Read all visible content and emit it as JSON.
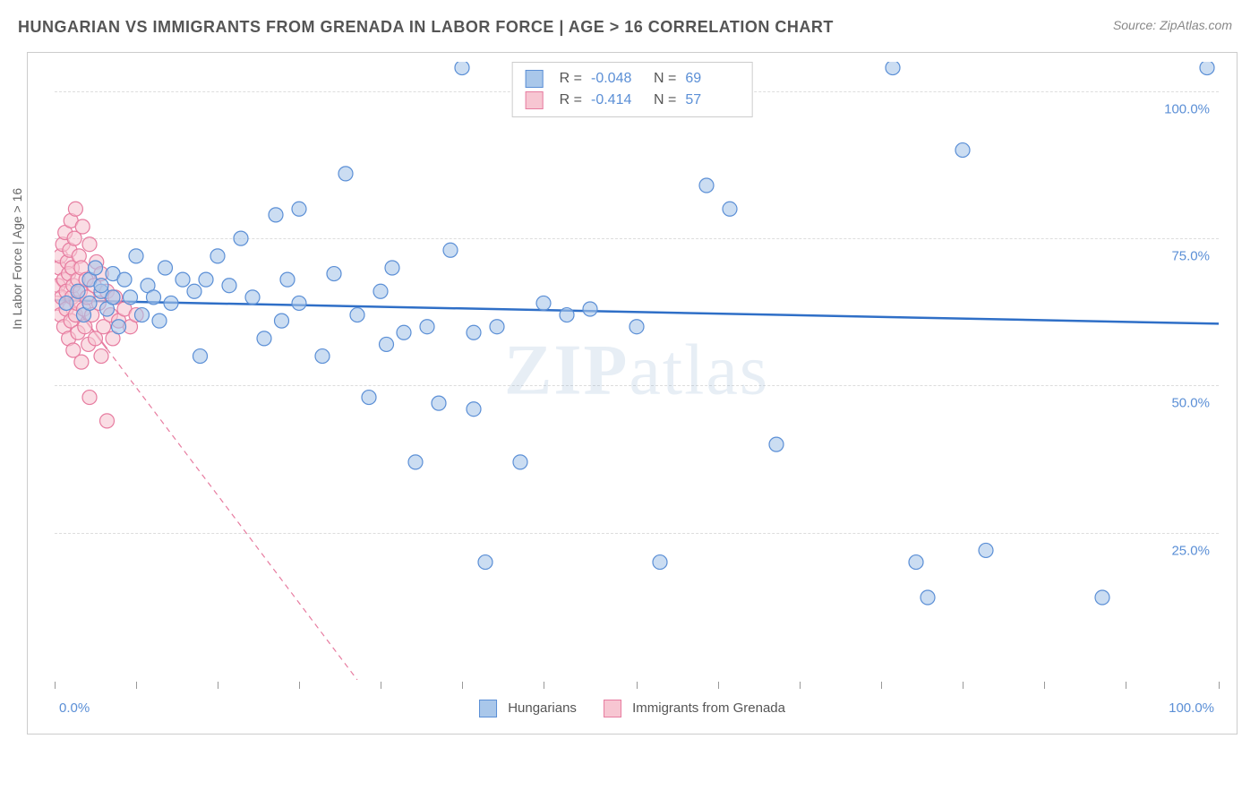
{
  "title": "HUNGARIAN VS IMMIGRANTS FROM GRENADA IN LABOR FORCE | AGE > 16 CORRELATION CHART",
  "source": "Source: ZipAtlas.com",
  "watermark_a": "ZIP",
  "watermark_b": "atlas",
  "y_axis_title": "In Labor Force | Age > 16",
  "x_min_label": "0.0%",
  "x_max_label": "100.0%",
  "chart": {
    "type": "scatter",
    "xlim": [
      0,
      100
    ],
    "ylim": [
      0,
      105
    ],
    "y_ticks": [
      25,
      50,
      75,
      100
    ],
    "y_tick_labels": [
      "25.0%",
      "50.0%",
      "75.0%",
      "100.0%"
    ],
    "x_minor_ticks": [
      0,
      7,
      14,
      21,
      28,
      35,
      42,
      50,
      57,
      64,
      71,
      78,
      85,
      92,
      100
    ],
    "background_color": "#ffffff",
    "grid_color": "#dddddd",
    "marker_radius": 8,
    "marker_stroke_width": 1.2,
    "marker_fill_opacity": 0.25,
    "series": [
      {
        "name": "Hungarians",
        "color_fill": "#a9c7ea",
        "color_stroke": "#5b8fd6",
        "R": "-0.048",
        "N": "69",
        "regression": {
          "x1": 0,
          "y1": 64.5,
          "x2": 100,
          "y2": 60.5,
          "width": 2.5,
          "dash": "",
          "color": "#2f6fc7"
        },
        "points": [
          [
            1,
            64
          ],
          [
            2,
            66
          ],
          [
            2.5,
            62
          ],
          [
            3,
            68
          ],
          [
            3,
            64
          ],
          [
            3.5,
            70
          ],
          [
            4,
            66
          ],
          [
            4,
            67
          ],
          [
            4.5,
            63
          ],
          [
            5,
            69
          ],
          [
            5,
            65
          ],
          [
            5.5,
            60
          ],
          [
            6,
            68
          ],
          [
            6.5,
            65
          ],
          [
            7,
            72
          ],
          [
            7.5,
            62
          ],
          [
            8,
            67
          ],
          [
            8.5,
            65
          ],
          [
            9,
            61
          ],
          [
            9.5,
            70
          ],
          [
            10,
            64
          ],
          [
            11,
            68
          ],
          [
            12,
            66
          ],
          [
            12.5,
            55
          ],
          [
            13,
            68
          ],
          [
            14,
            72
          ],
          [
            15,
            67
          ],
          [
            16,
            75
          ],
          [
            17,
            65
          ],
          [
            18,
            58
          ],
          [
            19,
            79
          ],
          [
            19.5,
            61
          ],
          [
            20,
            68
          ],
          [
            21,
            80
          ],
          [
            21,
            64
          ],
          [
            23,
            55
          ],
          [
            24,
            69
          ],
          [
            25,
            86
          ],
          [
            26,
            62
          ],
          [
            27,
            48
          ],
          [
            28,
            66
          ],
          [
            28.5,
            57
          ],
          [
            29,
            70
          ],
          [
            30,
            59
          ],
          [
            31,
            37
          ],
          [
            32,
            60
          ],
          [
            33,
            47
          ],
          [
            34,
            73
          ],
          [
            35,
            104
          ],
          [
            36,
            46
          ],
          [
            36,
            59
          ],
          [
            37,
            20
          ],
          [
            38,
            60
          ],
          [
            40,
            37
          ],
          [
            42,
            64
          ],
          [
            44,
            62
          ],
          [
            46,
            63
          ],
          [
            50,
            60
          ],
          [
            52,
            20
          ],
          [
            56,
            84
          ],
          [
            58,
            80
          ],
          [
            62,
            40
          ],
          [
            72,
            104
          ],
          [
            74,
            20
          ],
          [
            75,
            14
          ],
          [
            78,
            90
          ],
          [
            80,
            22
          ],
          [
            90,
            14
          ],
          [
            99,
            104
          ]
        ]
      },
      {
        "name": "Immigrants from Grenada",
        "color_fill": "#f7c6d2",
        "color_stroke": "#e77ca0",
        "R": "-0.414",
        "N": "57",
        "regression": {
          "x1": 0,
          "y1": 68,
          "x2": 26,
          "y2": 0,
          "width": 1.2,
          "dash": "6,5",
          "color": "#e77ca0",
          "solid_until_x": 4.5
        },
        "points": [
          [
            0.2,
            64
          ],
          [
            0.3,
            67
          ],
          [
            0.4,
            70
          ],
          [
            0.5,
            62
          ],
          [
            0.5,
            72
          ],
          [
            0.6,
            65
          ],
          [
            0.7,
            74
          ],
          [
            0.8,
            60
          ],
          [
            0.8,
            68
          ],
          [
            0.9,
            76
          ],
          [
            1.0,
            63
          ],
          [
            1.0,
            66
          ],
          [
            1.1,
            71
          ],
          [
            1.2,
            58
          ],
          [
            1.2,
            69
          ],
          [
            1.3,
            73
          ],
          [
            1.4,
            61
          ],
          [
            1.4,
            78
          ],
          [
            1.5,
            65
          ],
          [
            1.5,
            70
          ],
          [
            1.6,
            56
          ],
          [
            1.6,
            67
          ],
          [
            1.7,
            75
          ],
          [
            1.8,
            62
          ],
          [
            1.8,
            80
          ],
          [
            1.9,
            64
          ],
          [
            2.0,
            68
          ],
          [
            2.0,
            59
          ],
          [
            2.1,
            72
          ],
          [
            2.2,
            66
          ],
          [
            2.3,
            54
          ],
          [
            2.3,
            70
          ],
          [
            2.4,
            77
          ],
          [
            2.5,
            63
          ],
          [
            2.6,
            60
          ],
          [
            2.7,
            68
          ],
          [
            2.8,
            65
          ],
          [
            2.9,
            57
          ],
          [
            3.0,
            48
          ],
          [
            3.0,
            74
          ],
          [
            3.2,
            62
          ],
          [
            3.4,
            67
          ],
          [
            3.5,
            58
          ],
          [
            3.6,
            71
          ],
          [
            3.8,
            64
          ],
          [
            4.0,
            55
          ],
          [
            4.0,
            69
          ],
          [
            4.2,
            60
          ],
          [
            4.5,
            44
          ],
          [
            4.5,
            66
          ],
          [
            4.8,
            62
          ],
          [
            5.0,
            58
          ],
          [
            5.2,
            65
          ],
          [
            5.5,
            61
          ],
          [
            6.0,
            63
          ],
          [
            6.5,
            60
          ],
          [
            7.0,
            62
          ]
        ]
      }
    ]
  },
  "legend": {
    "series1": "Hungarians",
    "series2": "Immigrants from Grenada"
  },
  "stat_labels": {
    "R": "R =",
    "N": "N ="
  }
}
